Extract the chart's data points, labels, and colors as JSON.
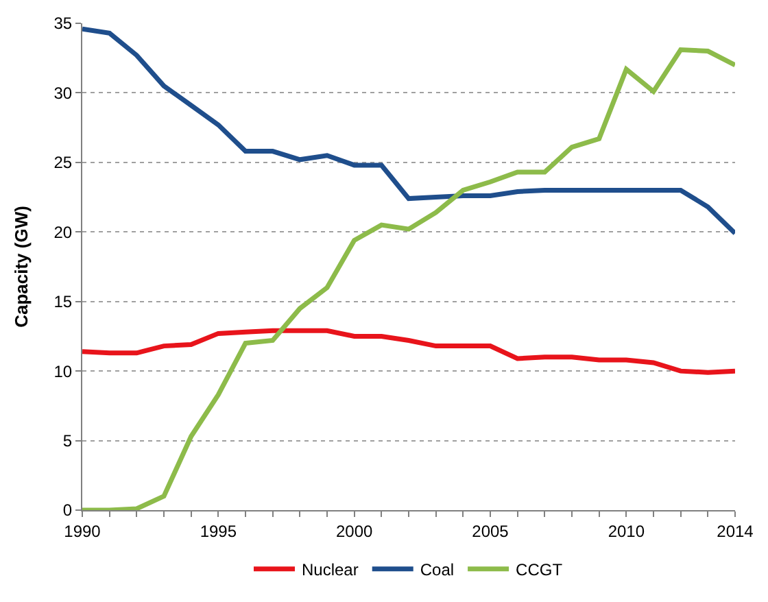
{
  "chart_data": {
    "type": "line",
    "ylabel": "Capacity (GW)",
    "x": [
      1990,
      1991,
      1992,
      1993,
      1994,
      1995,
      1996,
      1997,
      1998,
      1999,
      2000,
      2001,
      2002,
      2003,
      2004,
      2005,
      2006,
      2007,
      2008,
      2009,
      2010,
      2011,
      2012,
      2013,
      2014
    ],
    "series": [
      {
        "name": "Nuclear",
        "color": "#e8141b",
        "values": [
          11.4,
          11.3,
          11.3,
          11.8,
          11.9,
          12.7,
          12.8,
          12.9,
          12.9,
          12.9,
          12.5,
          12.5,
          12.2,
          11.8,
          11.8,
          11.8,
          10.9,
          11.0,
          11.0,
          10.8,
          10.8,
          10.6,
          10.0,
          9.9,
          10.0
        ]
      },
      {
        "name": "Coal",
        "color": "#1f4e8c",
        "values": [
          34.6,
          34.3,
          32.7,
          30.5,
          29.1,
          27.7,
          25.8,
          25.8,
          25.2,
          25.5,
          24.8,
          24.8,
          22.4,
          22.5,
          22.6,
          22.6,
          22.9,
          23.0,
          23.0,
          23.0,
          23.0,
          23.0,
          23.0,
          21.8,
          19.9
        ]
      },
      {
        "name": "CCGT",
        "color": "#8dbb4a",
        "values": [
          0,
          0,
          0.1,
          1.0,
          5.3,
          8.3,
          12.0,
          12.2,
          14.5,
          16.0,
          19.4,
          20.5,
          20.2,
          21.4,
          23.0,
          23.6,
          24.3,
          24.3,
          26.1,
          26.7,
          31.7,
          30.1,
          33.1,
          33.0,
          32.0
        ]
      }
    ],
    "xlim": [
      1990,
      2014
    ],
    "xticks": [
      1990,
      1995,
      2000,
      2005,
      2010,
      2014
    ],
    "ylim": [
      0,
      35
    ],
    "yticks": [
      0,
      5,
      10,
      15,
      20,
      25,
      30,
      35
    ],
    "grid": "y",
    "legend": "bottom",
    "marker": "none",
    "line_style": "solid"
  }
}
